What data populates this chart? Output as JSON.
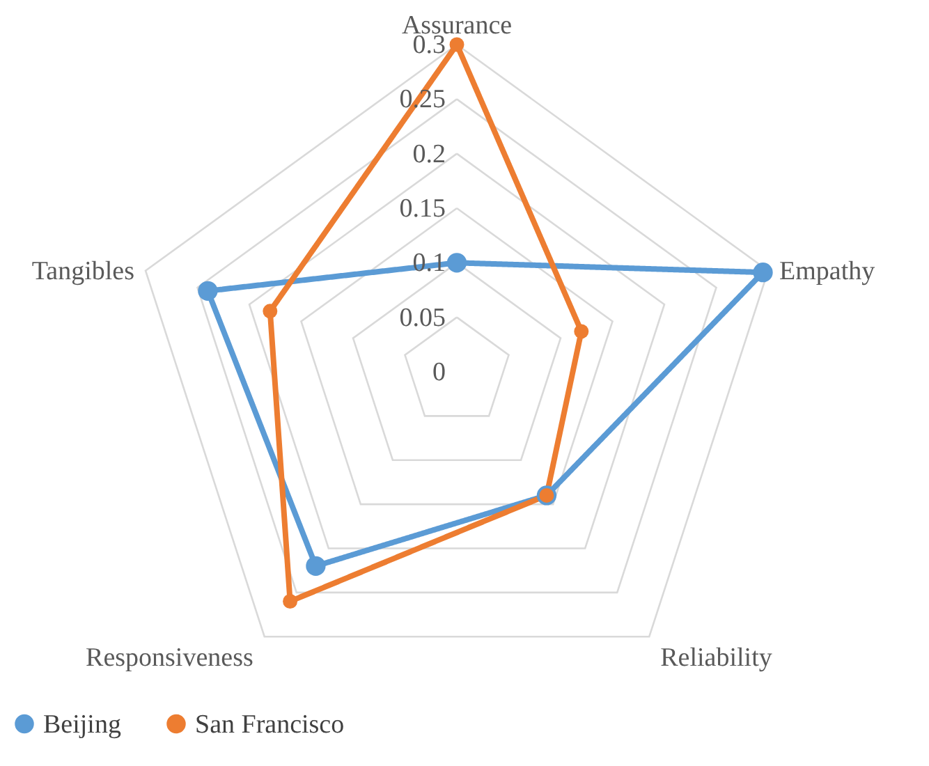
{
  "chart_data": {
    "type": "radar",
    "categories": [
      "Assurance",
      "Empathy",
      "Reliability",
      "Responsiveness",
      "Tangibles"
    ],
    "series": [
      {
        "name": "Beijing",
        "color": "#5b9bd5",
        "values": [
          0.1,
          0.295,
          0.14,
          0.22,
          0.24
        ]
      },
      {
        "name": "San Francisco",
        "color": "#ed7d31",
        "values": [
          0.3,
          0.12,
          0.14,
          0.26,
          0.18
        ]
      }
    ],
    "ylim": [
      0,
      0.3
    ],
    "yticks": [
      0,
      0.05,
      0.1,
      0.15,
      0.2,
      0.25,
      0.3
    ],
    "grid": true,
    "legend": "bottom",
    "marker": "circle",
    "line_style": "solid"
  }
}
